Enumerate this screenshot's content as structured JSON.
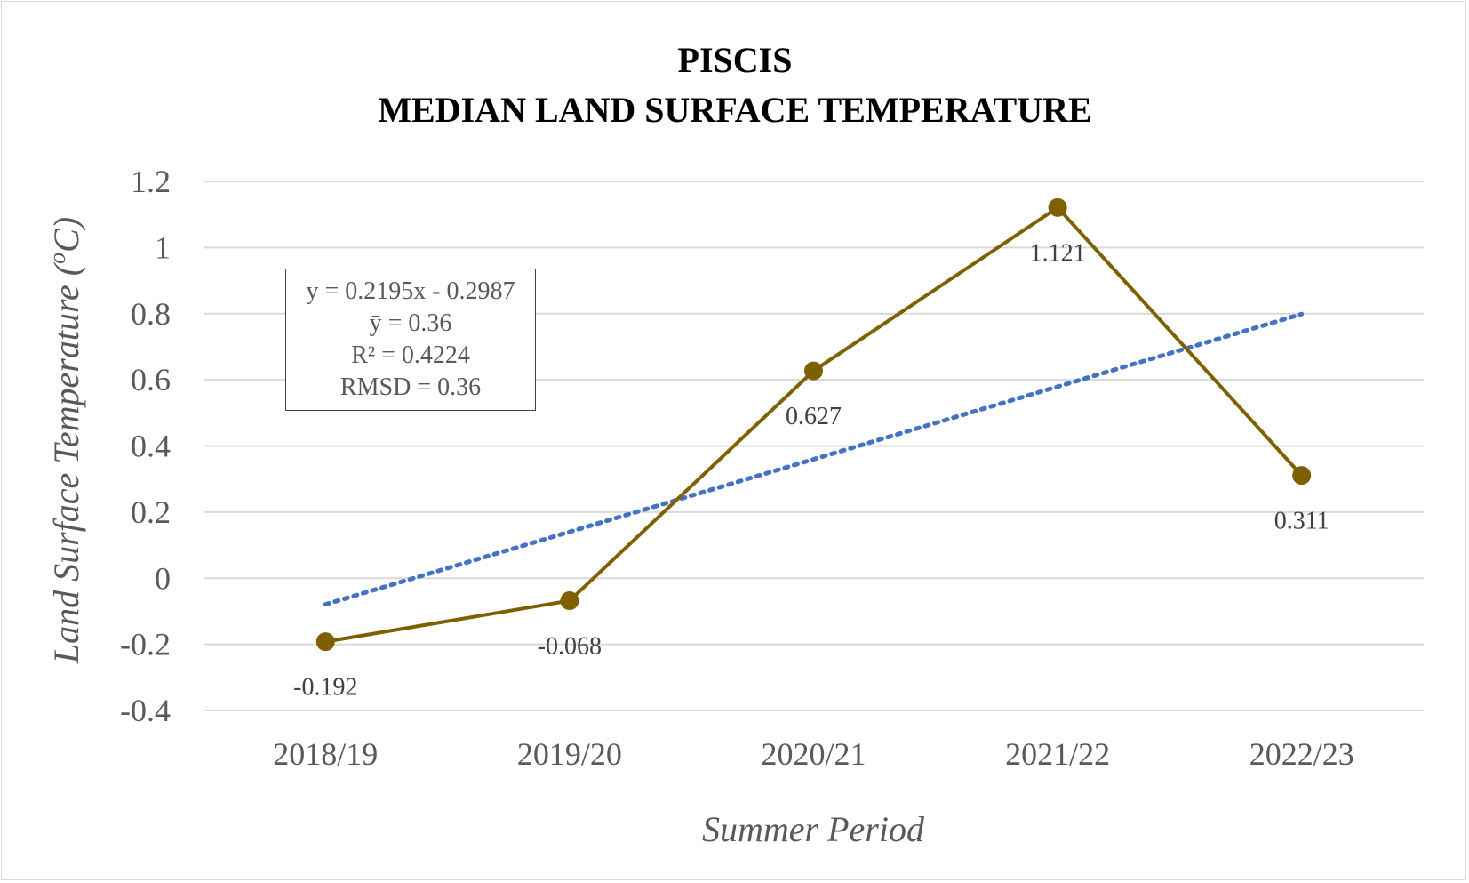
{
  "colors": {
    "series": "#7f6000",
    "trendline": "#4472c4",
    "gridline": "#d9d9d9",
    "tick_text": "#595959",
    "title": "#000000"
  },
  "chart_data": {
    "type": "line",
    "title_lines": [
      "PISCIS",
      "MEDIAN LAND SURFACE TEMPERATURE"
    ],
    "xlabel": "Summer Period",
    "ylabel_main": "Land Surface Temperature (",
    "ylabel_sup": "o",
    "ylabel_end": "C)",
    "categories": [
      "2018/19",
      "2019/20",
      "2020/21",
      "2021/22",
      "2022/23"
    ],
    "series": [
      {
        "values": [
          -0.192,
          -0.068,
          0.627,
          1.121,
          0.311
        ]
      }
    ],
    "data_labels": [
      "-0.192",
      "-0.068",
      "0.627",
      "1.121",
      "0.311"
    ],
    "trendline": {
      "type": "linear",
      "slope": 0.2195,
      "intercept": -0.2987,
      "style": "dotted"
    },
    "ylim": [
      -0.4,
      1.2
    ],
    "y_ticks": [
      -0.4,
      -0.2,
      0,
      0.2,
      0.4,
      0.6,
      0.8,
      1,
      1.2
    ],
    "y_tick_labels": [
      "-0.4",
      "-0.2",
      "0",
      "0.2",
      "0.4",
      "0.6",
      "0.8",
      "1",
      "1.2"
    ],
    "grid": true,
    "legend": "none",
    "stats_box": {
      "equation": "y = 0.2195x - 0.2987",
      "mean": "ȳ = 0.36",
      "r_squared": "R² = 0.4224",
      "rmsd": "RMSD = 0.36"
    }
  }
}
